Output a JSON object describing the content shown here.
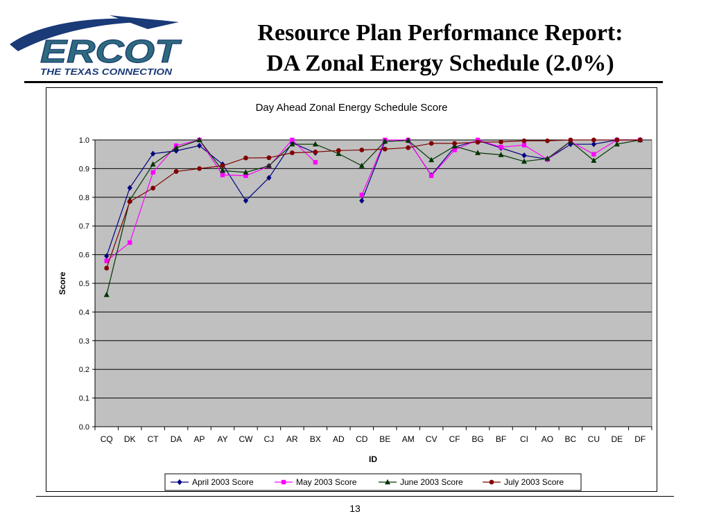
{
  "logo": {
    "name": "ERCOT",
    "tagline": "THE TEXAS CONNECTION",
    "colors": {
      "primary": "#2E6B7C",
      "swoosh": "#1A3A78"
    }
  },
  "slide": {
    "title_line1": "Resource Plan Performance Report:",
    "title_line2": "DA Zonal Energy Schedule (2.0%)",
    "page_number": "13"
  },
  "chart_data": {
    "type": "line",
    "title": "Day Ahead Zonal Energy Schedule Score",
    "xlabel": "ID",
    "ylabel": "Score",
    "ylim": [
      0.0,
      1.0
    ],
    "yticks": [
      "0.0",
      "0.1",
      "0.2",
      "0.3",
      "0.4",
      "0.5",
      "0.6",
      "0.7",
      "0.8",
      "0.9",
      "1.0"
    ],
    "grid": true,
    "legend_position": "bottom",
    "plot_background": "#C0C0C0",
    "categories": [
      "CQ",
      "DK",
      "CT",
      "DA",
      "AP",
      "AY",
      "CW",
      "CJ",
      "AR",
      "BX",
      "AD",
      "CD",
      "BE",
      "AM",
      "CV",
      "CF",
      "BG",
      "BF",
      "CI",
      "AO",
      "BC",
      "CU",
      "DE",
      "DF"
    ],
    "series": [
      {
        "name": "April 2003 Score",
        "color": "#000080",
        "marker": "diamond",
        "values": [
          0.595,
          0.833,
          0.952,
          0.962,
          0.98,
          0.915,
          0.788,
          0.868,
          0.99,
          0.955,
          null,
          0.788,
          0.995,
          0.998,
          0.877,
          0.975,
          0.998,
          0.972,
          0.946,
          0.933,
          0.985,
          0.985,
          1.0,
          1.0
        ]
      },
      {
        "name": "May 2003 Score",
        "color": "#FF00FF",
        "marker": "square",
        "values": [
          0.578,
          0.642,
          0.887,
          0.98,
          1.0,
          0.878,
          0.875,
          0.908,
          1.0,
          0.922,
          null,
          0.808,
          1.0,
          1.0,
          0.875,
          0.965,
          1.0,
          0.975,
          0.982,
          0.932,
          0.995,
          0.95,
          1.0,
          1.0
        ]
      },
      {
        "name": "June 2003 Score",
        "color": "#003300",
        "marker": "triangle",
        "values": [
          0.46,
          0.79,
          0.915,
          0.972,
          1.0,
          0.893,
          0.887,
          0.91,
          0.985,
          0.985,
          0.952,
          0.91,
          0.995,
          0.998,
          0.93,
          0.978,
          0.955,
          0.948,
          0.925,
          0.935,
          0.995,
          0.928,
          0.985,
          1.0
        ]
      },
      {
        "name": "July 2003 Score",
        "color": "#800000",
        "marker": "circle",
        "values": [
          0.553,
          0.785,
          0.832,
          0.89,
          0.9,
          0.91,
          0.937,
          0.938,
          0.955,
          0.958,
          0.963,
          0.965,
          0.968,
          0.973,
          0.988,
          0.988,
          0.992,
          0.993,
          0.997,
          0.997,
          1.0,
          1.0,
          1.0,
          1.0
        ]
      }
    ]
  }
}
